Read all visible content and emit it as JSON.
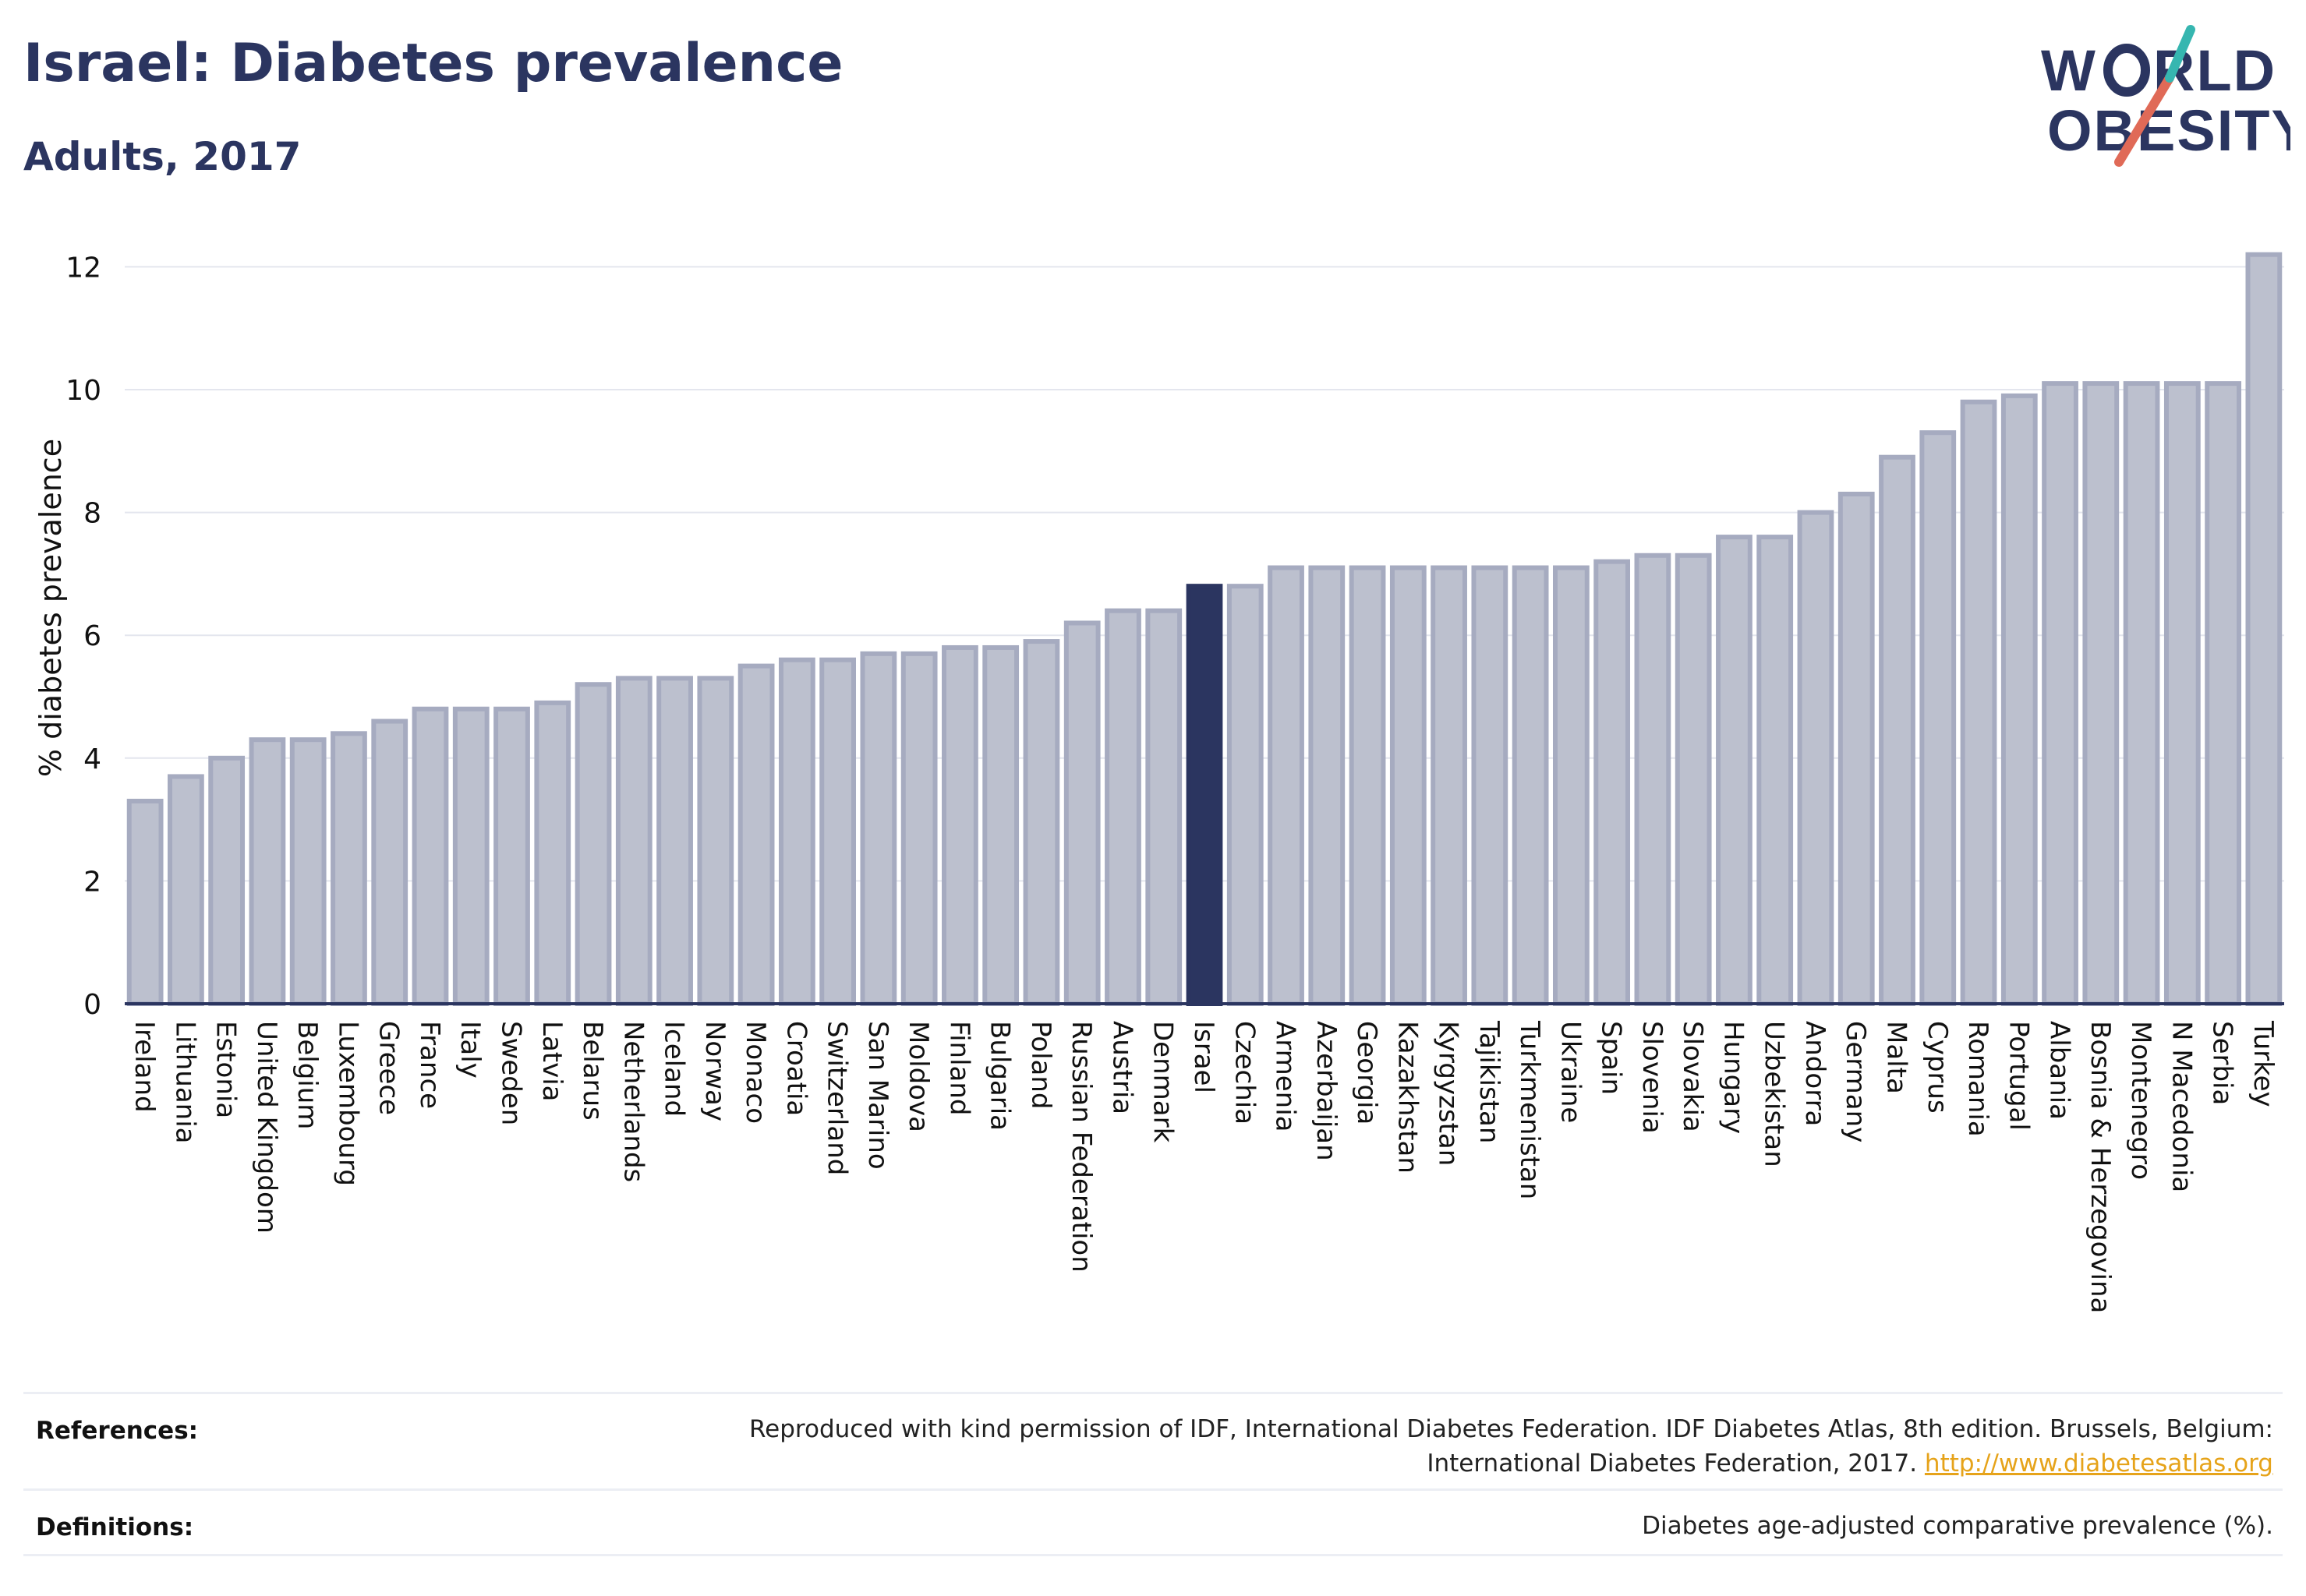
{
  "title": "Israel: Diabetes prevalence",
  "subtitle": "Adults, 2017",
  "logo": {
    "line1": "W RLD",
    "line2": "OBESITY",
    "text": "WORLD OBESITY",
    "accent_colors": [
      "#e06a57",
      "#36b6b0"
    ]
  },
  "chart_data": {
    "type": "bar",
    "title": "Israel: Diabetes prevalence",
    "subtitle": "Adults, 2017",
    "ylabel": "% diabetes prevalence",
    "xlabel": "",
    "ylim": [
      0,
      12.5
    ],
    "yticks": [
      0,
      2,
      4,
      6,
      8,
      10,
      12
    ],
    "grid": true,
    "highlight": "Israel",
    "colors": {
      "bar": "#bcc0ce",
      "bar_edge": "#a6abc0",
      "highlight": "#2b3560"
    },
    "categories": [
      "Ireland",
      "Lithuania",
      "Estonia",
      "United Kingdom",
      "Belgium",
      "Luxembourg",
      "Greece",
      "France",
      "Italy",
      "Sweden",
      "Latvia",
      "Belarus",
      "Netherlands",
      "Iceland",
      "Norway",
      "Monaco",
      "Croatia",
      "Switzerland",
      "San Marino",
      "Moldova",
      "Finland",
      "Bulgaria",
      "Poland",
      "Russian Federation",
      "Austria",
      "Denmark",
      "Israel",
      "Czechia",
      "Armenia",
      "Azerbaijan",
      "Georgia",
      "Kazakhstan",
      "Kyrgyzstan",
      "Tajikistan",
      "Turkmenistan",
      "Ukraine",
      "Spain",
      "Slovenia",
      "Slovakia",
      "Hungary",
      "Uzbekistan",
      "Andorra",
      "Germany",
      "Malta",
      "Cyprus",
      "Romania",
      "Portugal",
      "Albania",
      "Bosnia & Herzegovina",
      "Montenegro",
      "N Macedonia",
      "Serbia",
      "Turkey"
    ],
    "values": [
      3.3,
      3.7,
      4.0,
      4.3,
      4.3,
      4.4,
      4.6,
      4.8,
      4.8,
      4.8,
      4.9,
      5.2,
      5.3,
      5.3,
      5.3,
      5.5,
      5.6,
      5.6,
      5.7,
      5.7,
      5.8,
      5.8,
      5.9,
      6.2,
      6.4,
      6.4,
      6.8,
      6.8,
      7.1,
      7.1,
      7.1,
      7.1,
      7.1,
      7.1,
      7.1,
      7.1,
      7.2,
      7.3,
      7.3,
      7.6,
      7.6,
      8.0,
      8.3,
      8.9,
      9.3,
      9.8,
      9.9,
      10.1,
      10.1,
      10.1,
      10.1,
      10.1,
      12.2
    ]
  },
  "references": {
    "label": "References:",
    "line1": "Reproduced with kind permission of IDF, International Diabetes Federation. IDF Diabetes Atlas, 8th edition. Brussels, Belgium:",
    "line2": "International Diabetes Federation, 2017.",
    "link": "http://www.diabetesatlas.org"
  },
  "definitions": {
    "label": "Definitions:",
    "text": "Diabetes age-adjusted comparative prevalence (%)."
  }
}
